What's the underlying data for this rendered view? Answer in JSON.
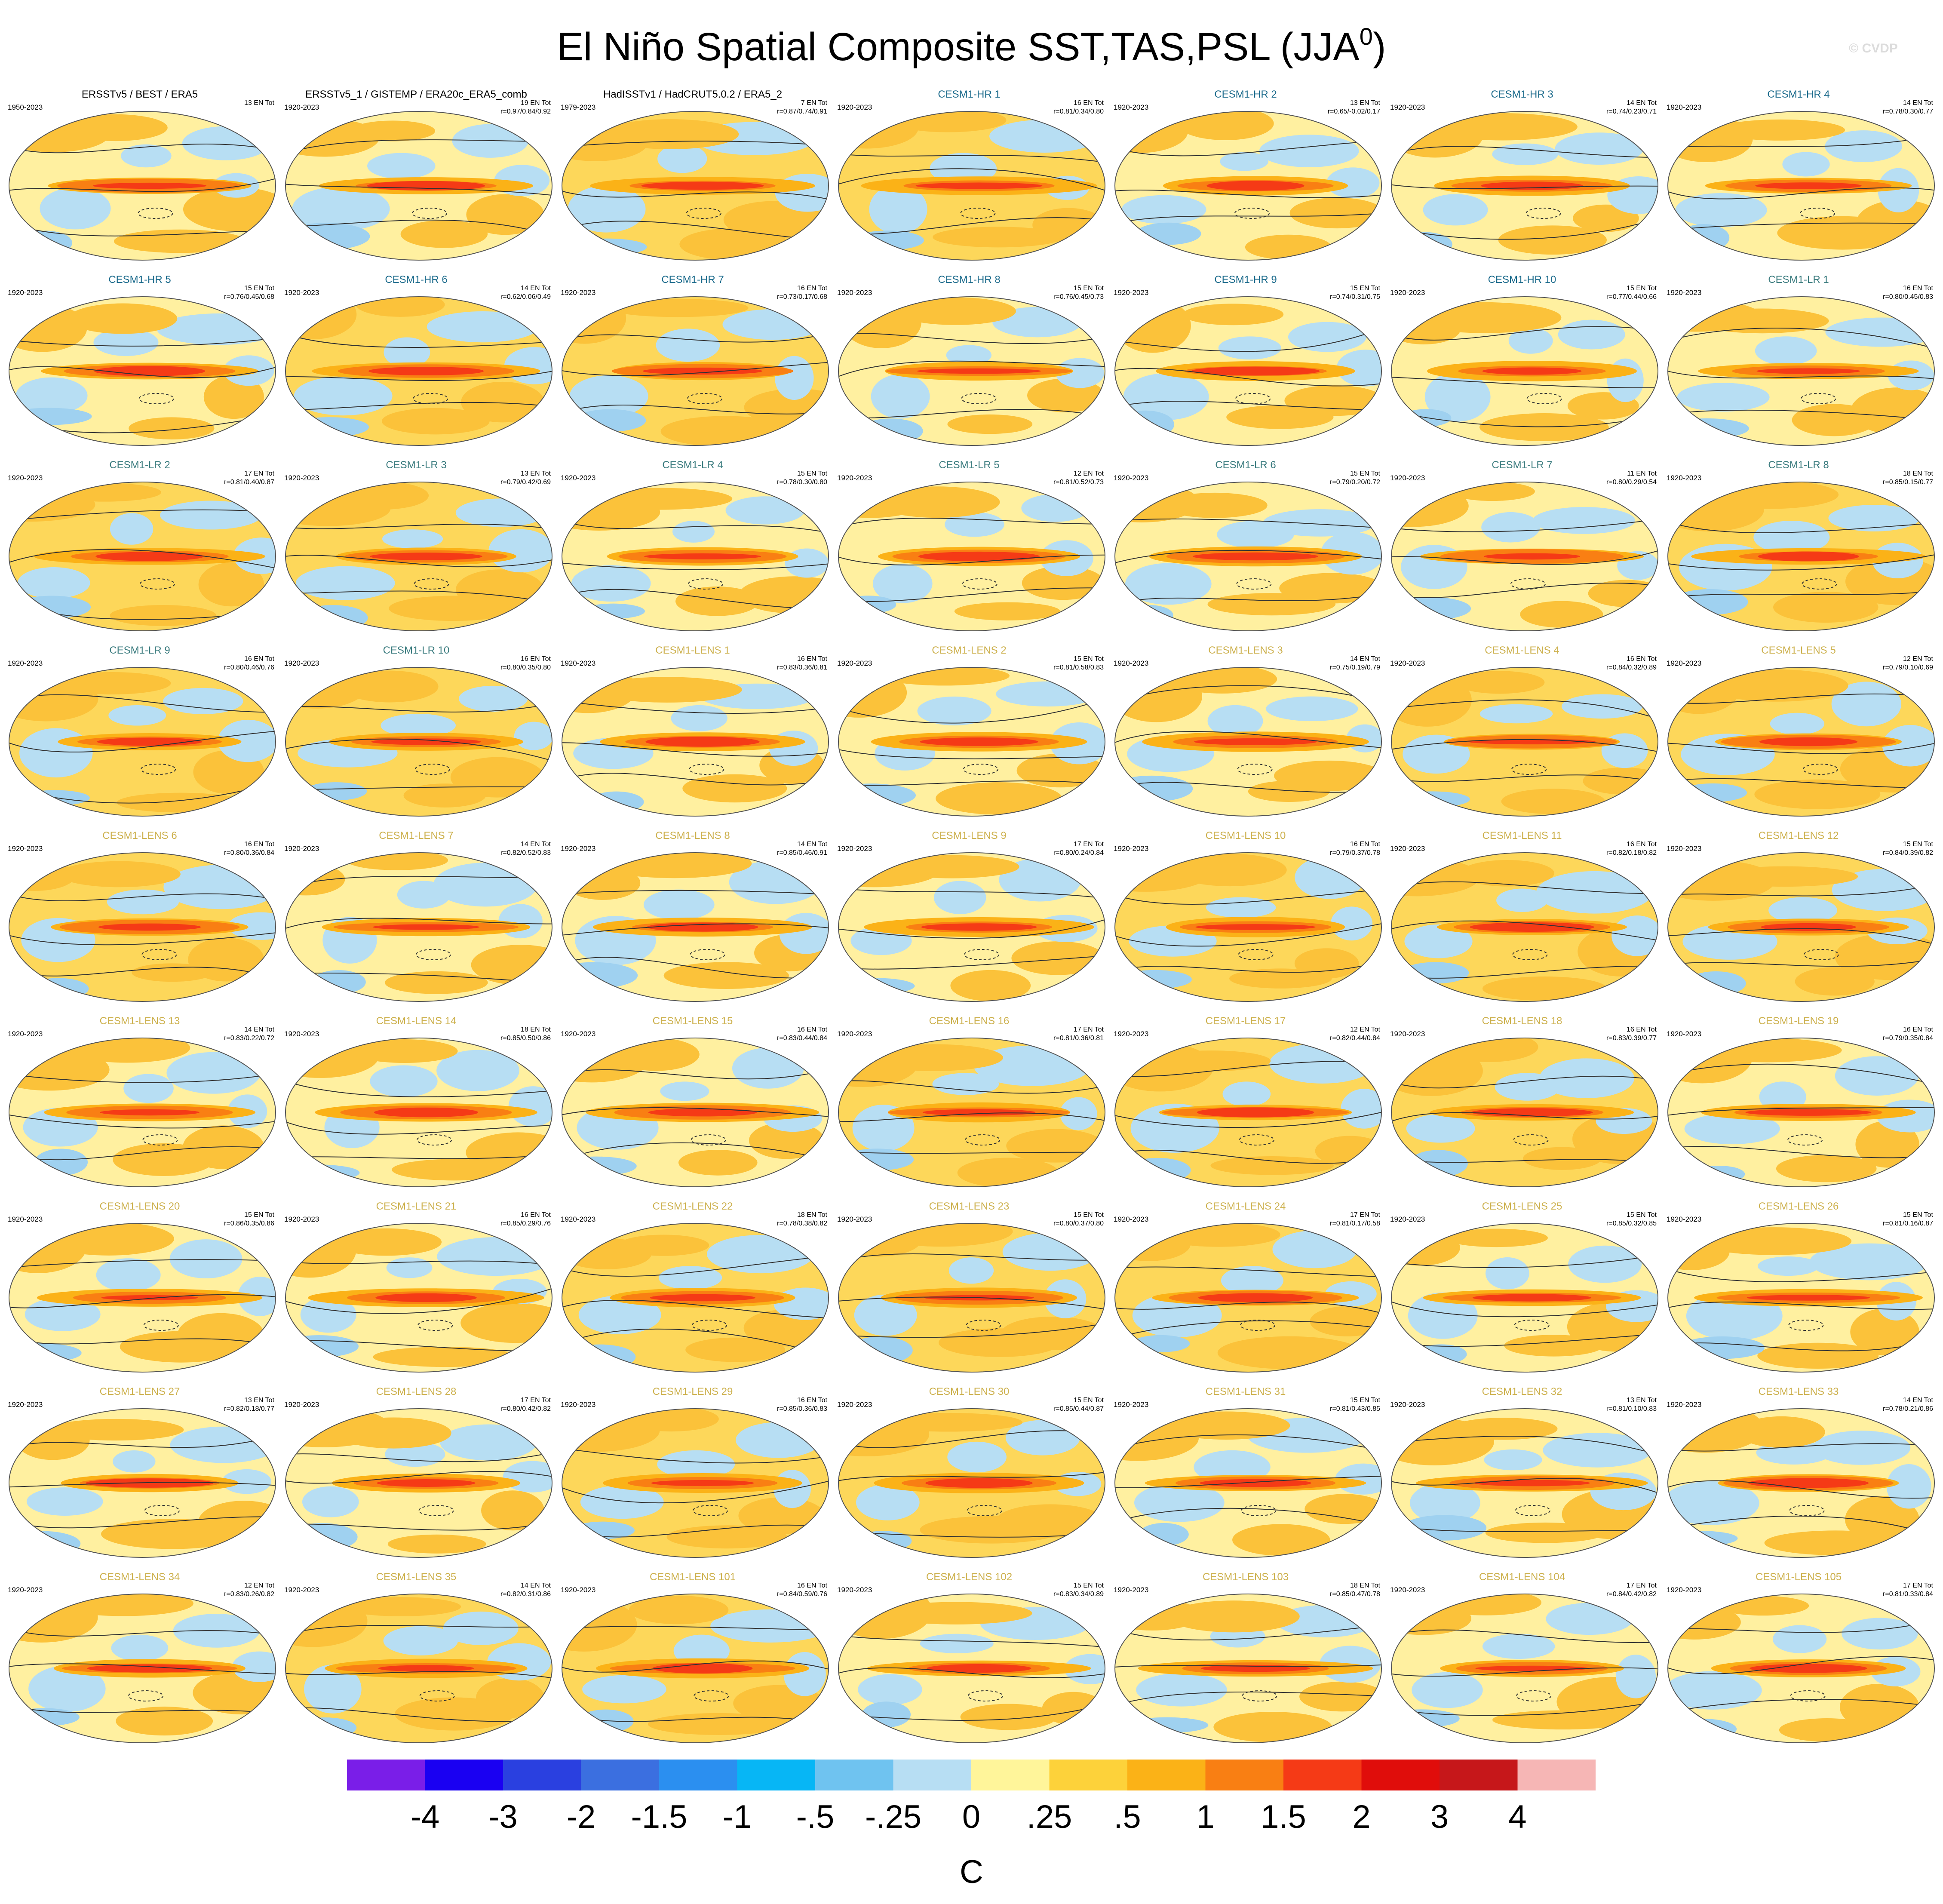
{
  "title": {
    "main": "El Niño Spatial Composite SST,TAS,PSL (JJA",
    "sup": "0",
    "close": ")"
  },
  "watermark": "© CVDP",
  "colors": {
    "obs_label": "#000000",
    "hr_label": "#1c6b8c",
    "lr_label": "#3d7d80",
    "lens_label": "#cdb14e"
  },
  "chart_data": {
    "type": "heatmap",
    "description_variable": "SST/TAS shaded, PSL contoured",
    "colorbar": {
      "units": "C",
      "levels": [
        "-4",
        "-3",
        "-2",
        "-1.5",
        "-1",
        "-.5",
        "-.25",
        "0",
        ".25",
        ".5",
        "1",
        "1.5",
        "2",
        "3",
        "4"
      ],
      "colors": [
        "#7a1ee8",
        "#1a00f2",
        "#2a40e0",
        "#3b6fe0",
        "#2b8ff0",
        "#07b6f5",
        "#6fc3f0",
        "#b7def3",
        "#fff59a",
        "#fdd23a",
        "#fbb217",
        "#f97f13",
        "#f53a16",
        "#e00d0b",
        "#c6171a",
        "#f6b6b5"
      ]
    },
    "panels": [
      {
        "label": "ERSSTv5 / BEST / ERA5",
        "kind": "obs",
        "years": "1950-2023",
        "count": "13 EN Tot",
        "stats": ""
      },
      {
        "label": "ERSSTv5_1 / GISTEMP / ERA20c_ERA5_comb",
        "kind": "obs",
        "years": "1920-2023",
        "count": "19 EN Tot",
        "stats": "r=0.97/0.84/0.92"
      },
      {
        "label": "HadISSTv1 / HadCRUT5.0.2 / ERA5_2",
        "kind": "obs",
        "years": "1979-2023",
        "count": "7 EN Tot",
        "stats": "r=0.87/0.74/0.91"
      },
      {
        "label": "CESM1-HR 1",
        "kind": "hr",
        "years": "1920-2023",
        "count": "16 EN Tot",
        "stats": "r=0.81/0.34/0.80"
      },
      {
        "label": "CESM1-HR 2",
        "kind": "hr",
        "years": "1920-2023",
        "count": "13 EN Tot",
        "stats": "r=0.65/-0.02/0.17"
      },
      {
        "label": "CESM1-HR 3",
        "kind": "hr",
        "years": "1920-2023",
        "count": "14 EN Tot",
        "stats": "r=0.74/0.23/0.71"
      },
      {
        "label": "CESM1-HR 4",
        "kind": "hr",
        "years": "1920-2023",
        "count": "14 EN Tot",
        "stats": "r=0.78/0.30/0.77"
      },
      {
        "label": "CESM1-HR 5",
        "kind": "hr",
        "years": "1920-2023",
        "count": "15 EN Tot",
        "stats": "r=0.76/0.45/0.68"
      },
      {
        "label": "CESM1-HR 6",
        "kind": "hr",
        "years": "1920-2023",
        "count": "14 EN Tot",
        "stats": "r=0.62/0.06/0.49"
      },
      {
        "label": "CESM1-HR 7",
        "kind": "hr",
        "years": "1920-2023",
        "count": "16 EN Tot",
        "stats": "r=0.73/0.17/0.68"
      },
      {
        "label": "CESM1-HR 8",
        "kind": "hr",
        "years": "1920-2023",
        "count": "15 EN Tot",
        "stats": "r=0.76/0.45/0.73"
      },
      {
        "label": "CESM1-HR 9",
        "kind": "hr",
        "years": "1920-2023",
        "count": "15 EN Tot",
        "stats": "r=0.74/0.31/0.75"
      },
      {
        "label": "CESM1-HR 10",
        "kind": "hr",
        "years": "1920-2023",
        "count": "15 EN Tot",
        "stats": "r=0.77/0.44/0.66"
      },
      {
        "label": "CESM1-LR 1",
        "kind": "lr",
        "years": "1920-2023",
        "count": "16 EN Tot",
        "stats": "r=0.80/0.45/0.83"
      },
      {
        "label": "CESM1-LR 2",
        "kind": "lr",
        "years": "1920-2023",
        "count": "17 EN Tot",
        "stats": "r=0.81/0.40/0.87"
      },
      {
        "label": "CESM1-LR 3",
        "kind": "lr",
        "years": "1920-2023",
        "count": "13 EN Tot",
        "stats": "r=0.79/0.42/0.69"
      },
      {
        "label": "CESM1-LR 4",
        "kind": "lr",
        "years": "1920-2023",
        "count": "15 EN Tot",
        "stats": "r=0.78/0.30/0.80"
      },
      {
        "label": "CESM1-LR 5",
        "kind": "lr",
        "years": "1920-2023",
        "count": "12 EN Tot",
        "stats": "r=0.81/0.52/0.73"
      },
      {
        "label": "CESM1-LR 6",
        "kind": "lr",
        "years": "1920-2023",
        "count": "15 EN Tot",
        "stats": "r=0.79/0.20/0.72"
      },
      {
        "label": "CESM1-LR 7",
        "kind": "lr",
        "years": "1920-2023",
        "count": "11 EN Tot",
        "stats": "r=0.80/0.29/0.54"
      },
      {
        "label": "CESM1-LR 8",
        "kind": "lr",
        "years": "1920-2023",
        "count": "18 EN Tot",
        "stats": "r=0.85/0.15/0.77"
      },
      {
        "label": "CESM1-LR 9",
        "kind": "lr",
        "years": "1920-2023",
        "count": "16 EN Tot",
        "stats": "r=0.80/0.46/0.76"
      },
      {
        "label": "CESM1-LR 10",
        "kind": "lr",
        "years": "1920-2023",
        "count": "16 EN Tot",
        "stats": "r=0.80/0.35/0.80"
      },
      {
        "label": "CESM1-LENS 1",
        "kind": "lens",
        "years": "1920-2023",
        "count": "16 EN Tot",
        "stats": "r=0.83/0.36/0.81"
      },
      {
        "label": "CESM1-LENS 2",
        "kind": "lens",
        "years": "1920-2023",
        "count": "15 EN Tot",
        "stats": "r=0.81/0.58/0.83"
      },
      {
        "label": "CESM1-LENS 3",
        "kind": "lens",
        "years": "1920-2023",
        "count": "14 EN Tot",
        "stats": "r=0.75/0.19/0.79"
      },
      {
        "label": "CESM1-LENS 4",
        "kind": "lens",
        "years": "1920-2023",
        "count": "16 EN Tot",
        "stats": "r=0.84/0.32/0.89"
      },
      {
        "label": "CESM1-LENS 5",
        "kind": "lens",
        "years": "1920-2023",
        "count": "12 EN Tot",
        "stats": "r=0.79/0.10/0.69"
      },
      {
        "label": "CESM1-LENS 6",
        "kind": "lens",
        "years": "1920-2023",
        "count": "16 EN Tot",
        "stats": "r=0.80/0.36/0.84"
      },
      {
        "label": "CESM1-LENS 7",
        "kind": "lens",
        "years": "1920-2023",
        "count": "14 EN Tot",
        "stats": "r=0.82/0.52/0.83"
      },
      {
        "label": "CESM1-LENS 8",
        "kind": "lens",
        "years": "1920-2023",
        "count": "14 EN Tot",
        "stats": "r=0.85/0.46/0.91"
      },
      {
        "label": "CESM1-LENS 9",
        "kind": "lens",
        "years": "1920-2023",
        "count": "17 EN Tot",
        "stats": "r=0.80/0.24/0.84"
      },
      {
        "label": "CESM1-LENS 10",
        "kind": "lens",
        "years": "1920-2023",
        "count": "16 EN Tot",
        "stats": "r=0.79/0.37/0.78"
      },
      {
        "label": "CESM1-LENS 11",
        "kind": "lens",
        "years": "1920-2023",
        "count": "16 EN Tot",
        "stats": "r=0.82/0.18/0.82"
      },
      {
        "label": "CESM1-LENS 12",
        "kind": "lens",
        "years": "1920-2023",
        "count": "15 EN Tot",
        "stats": "r=0.84/0.39/0.82"
      },
      {
        "label": "CESM1-LENS 13",
        "kind": "lens",
        "years": "1920-2023",
        "count": "14 EN Tot",
        "stats": "r=0.83/0.22/0.72"
      },
      {
        "label": "CESM1-LENS 14",
        "kind": "lens",
        "years": "1920-2023",
        "count": "18 EN Tot",
        "stats": "r=0.85/0.50/0.86"
      },
      {
        "label": "CESM1-LENS 15",
        "kind": "lens",
        "years": "1920-2023",
        "count": "16 EN Tot",
        "stats": "r=0.83/0.44/0.84"
      },
      {
        "label": "CESM1-LENS 16",
        "kind": "lens",
        "years": "1920-2023",
        "count": "17 EN Tot",
        "stats": "r=0.81/0.36/0.81"
      },
      {
        "label": "CESM1-LENS 17",
        "kind": "lens",
        "years": "1920-2023",
        "count": "12 EN Tot",
        "stats": "r=0.82/0.44/0.84"
      },
      {
        "label": "CESM1-LENS 18",
        "kind": "lens",
        "years": "1920-2023",
        "count": "16 EN Tot",
        "stats": "r=0.83/0.39/0.77"
      },
      {
        "label": "CESM1-LENS 19",
        "kind": "lens",
        "years": "1920-2023",
        "count": "16 EN Tot",
        "stats": "r=0.79/0.35/0.84"
      },
      {
        "label": "CESM1-LENS 20",
        "kind": "lens",
        "years": "1920-2023",
        "count": "15 EN Tot",
        "stats": "r=0.86/0.35/0.86"
      },
      {
        "label": "CESM1-LENS 21",
        "kind": "lens",
        "years": "1920-2023",
        "count": "16 EN Tot",
        "stats": "r=0.85/0.29/0.76"
      },
      {
        "label": "CESM1-LENS 22",
        "kind": "lens",
        "years": "1920-2023",
        "count": "18 EN Tot",
        "stats": "r=0.78/0.38/0.82"
      },
      {
        "label": "CESM1-LENS 23",
        "kind": "lens",
        "years": "1920-2023",
        "count": "15 EN Tot",
        "stats": "r=0.80/0.37/0.80"
      },
      {
        "label": "CESM1-LENS 24",
        "kind": "lens",
        "years": "1920-2023",
        "count": "17 EN Tot",
        "stats": "r=0.81/0.17/0.58"
      },
      {
        "label": "CESM1-LENS 25",
        "kind": "lens",
        "years": "1920-2023",
        "count": "15 EN Tot",
        "stats": "r=0.85/0.32/0.85"
      },
      {
        "label": "CESM1-LENS 26",
        "kind": "lens",
        "years": "1920-2023",
        "count": "15 EN Tot",
        "stats": "r=0.81/0.16/0.87"
      },
      {
        "label": "CESM1-LENS 27",
        "kind": "lens",
        "years": "1920-2023",
        "count": "13 EN Tot",
        "stats": "r=0.82/0.18/0.77"
      },
      {
        "label": "CESM1-LENS 28",
        "kind": "lens",
        "years": "1920-2023",
        "count": "17 EN Tot",
        "stats": "r=0.80/0.42/0.82"
      },
      {
        "label": "CESM1-LENS 29",
        "kind": "lens",
        "years": "1920-2023",
        "count": "16 EN Tot",
        "stats": "r=0.85/0.36/0.83"
      },
      {
        "label": "CESM1-LENS 30",
        "kind": "lens",
        "years": "1920-2023",
        "count": "15 EN Tot",
        "stats": "r=0.85/0.44/0.87"
      },
      {
        "label": "CESM1-LENS 31",
        "kind": "lens",
        "years": "1920-2023",
        "count": "15 EN Tot",
        "stats": "r=0.81/0.43/0.85"
      },
      {
        "label": "CESM1-LENS 32",
        "kind": "lens",
        "years": "1920-2023",
        "count": "13 EN Tot",
        "stats": "r=0.81/0.10/0.83"
      },
      {
        "label": "CESM1-LENS 33",
        "kind": "lens",
        "years": "1920-2023",
        "count": "14 EN Tot",
        "stats": "r=0.78/0.21/0.86"
      },
      {
        "label": "CESM1-LENS 34",
        "kind": "lens",
        "years": "1920-2023",
        "count": "12 EN Tot",
        "stats": "r=0.83/0.26/0.82"
      },
      {
        "label": "CESM1-LENS 35",
        "kind": "lens",
        "years": "1920-2023",
        "count": "14 EN Tot",
        "stats": "r=0.82/0.31/0.86"
      },
      {
        "label": "CESM1-LENS 101",
        "kind": "lens",
        "years": "1920-2023",
        "count": "16 EN Tot",
        "stats": "r=0.84/0.59/0.76"
      },
      {
        "label": "CESM1-LENS 102",
        "kind": "lens",
        "years": "1920-2023",
        "count": "15 EN Tot",
        "stats": "r=0.83/0.34/0.89"
      },
      {
        "label": "CESM1-LENS 103",
        "kind": "lens",
        "years": "1920-2023",
        "count": "18 EN Tot",
        "stats": "r=0.85/0.47/0.78"
      },
      {
        "label": "CESM1-LENS 104",
        "kind": "lens",
        "years": "1920-2023",
        "count": "17 EN Tot",
        "stats": "r=0.84/0.42/0.82"
      },
      {
        "label": "CESM1-LENS 105",
        "kind": "lens",
        "years": "1920-2023",
        "count": "17 EN Tot",
        "stats": "r=0.81/0.33/0.84"
      }
    ]
  }
}
